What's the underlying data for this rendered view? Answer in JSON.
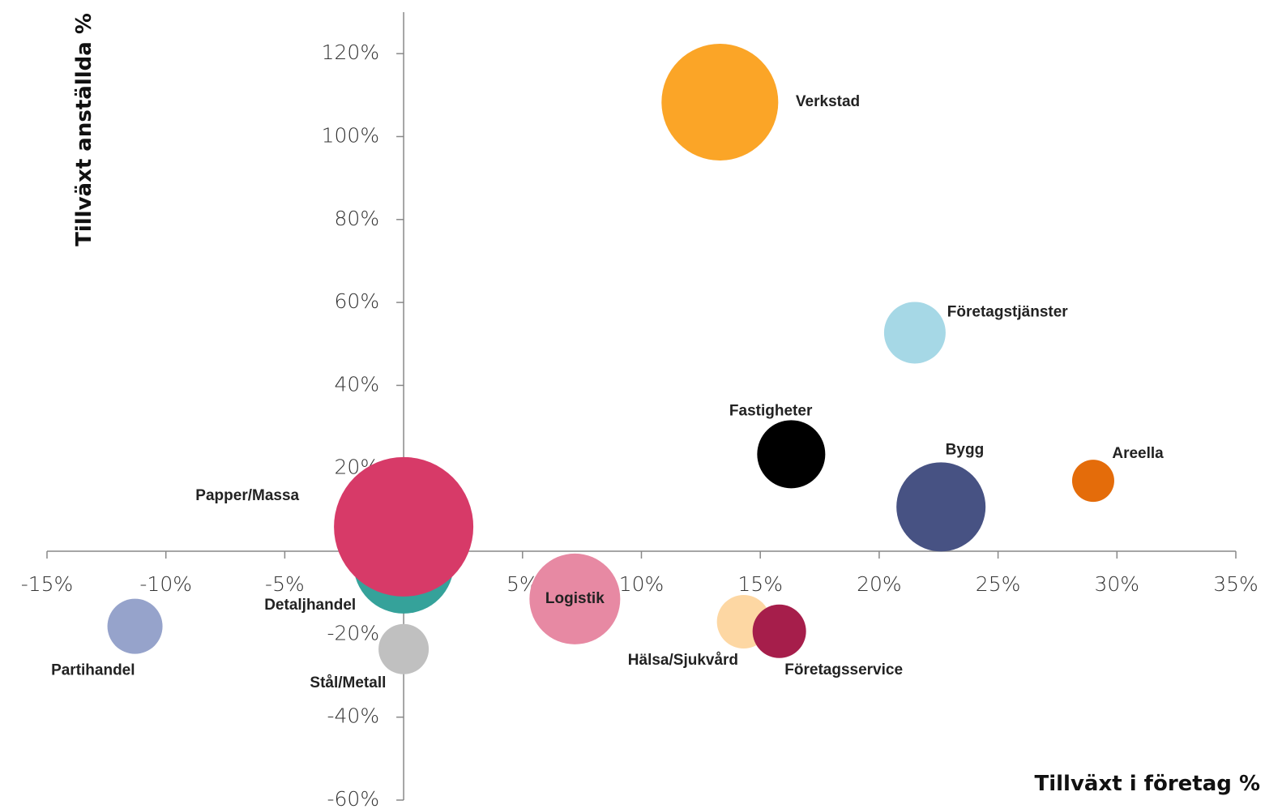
{
  "chart_data": {
    "type": "bubble",
    "xlabel": "Tillväxt i företag %",
    "ylabel": "Tillväxt anställda %",
    "xlim": [
      -15,
      35
    ],
    "ylim": [
      -60,
      130
    ],
    "xticks": [
      {
        "value": -15,
        "label": "-15%"
      },
      {
        "value": -10,
        "label": "-10%"
      },
      {
        "value": -5,
        "label": "-5%"
      },
      {
        "value": 0,
        "label": "0%"
      },
      {
        "value": 5,
        "label": "5%"
      },
      {
        "value": 10,
        "label": "10%"
      },
      {
        "value": 15,
        "label": "15%"
      },
      {
        "value": 20,
        "label": "20%"
      },
      {
        "value": 25,
        "label": "25%"
      },
      {
        "value": 30,
        "label": "30%"
      },
      {
        "value": 35,
        "label": "35%"
      }
    ],
    "yticks": [
      {
        "value": -60,
        "label": "-60%"
      },
      {
        "value": -40,
        "label": "-40%"
      },
      {
        "value": -20,
        "label": "-20%"
      },
      {
        "value": 0,
        "label": "0%"
      },
      {
        "value": 20,
        "label": "20%"
      },
      {
        "value": 40,
        "label": "40%"
      },
      {
        "value": 60,
        "label": "60%"
      },
      {
        "value": 80,
        "label": "80%"
      },
      {
        "value": 100,
        "label": "100%"
      },
      {
        "value": 120,
        "label": "120%"
      }
    ],
    "points": [
      {
        "name": "Verkstad",
        "color": "#fba527",
        "x": 13.3,
        "y": 108.3,
        "size": 72
      },
      {
        "name": "Företagstjänster",
        "color": "#a6d8e6",
        "x": 21.5,
        "y": 52.7,
        "size": 38
      },
      {
        "name": "Fastigheter",
        "color": "#000000",
        "x": 16.3,
        "y": 23.4,
        "size": 42
      },
      {
        "name": "Bygg",
        "color": "#475283",
        "x": 22.6,
        "y": 10.7,
        "size": 55
      },
      {
        "name": "Areella",
        "color": "#e46c0a",
        "x": 29.0,
        "y": 17.0,
        "size": 26
      },
      {
        "name": "Detaljhandel",
        "color": "#35a29a",
        "x": 0,
        "y": -2.9,
        "size": 62
      },
      {
        "name": "Papper/Massa",
        "color": "#d73a68",
        "x": 0,
        "y": 5.9,
        "size": 86
      },
      {
        "name": "Partihandel",
        "color": "#96a3cb",
        "x": -11.3,
        "y": -18.1,
        "size": 34
      },
      {
        "name": "Stål/Metall",
        "color": "#c0c0c0",
        "x": 0,
        "y": -23.6,
        "size": 31
      },
      {
        "name": "Logistik",
        "color": "#e789a3",
        "x": 7.2,
        "y": -11.5,
        "size": 56
      },
      {
        "name": "Hälsa/Sjukvård",
        "color": "#fdd7a3",
        "x": 14.3,
        "y": -17.0,
        "size": 33
      },
      {
        "name": "Företagsservice",
        "color": "#a61e4b",
        "x": 15.8,
        "y": -19.3,
        "size": 33
      }
    ]
  }
}
